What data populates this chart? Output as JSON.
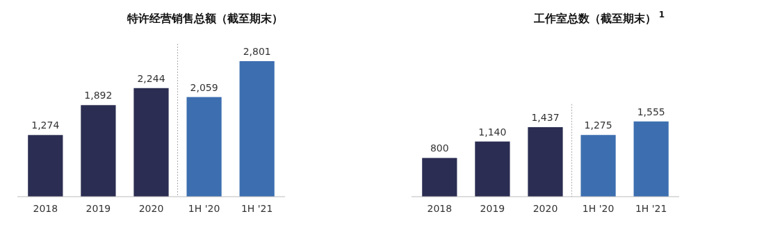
{
  "chart_data": [
    {
      "type": "bar",
      "title": "特许经营销售总额（截至期末）",
      "categories": [
        "2018",
        "2019",
        "2020",
        "1H '20",
        "1H '21"
      ],
      "values": [
        1274,
        1892,
        2244,
        2059,
        2801
      ],
      "value_labels": [
        "1,274",
        "1,892",
        "2,244",
        "2,059",
        "2,801"
      ],
      "colors": [
        "#2b2d52",
        "#2b2d52",
        "#2b2d52",
        "#3d6fb0",
        "#3d6fb0"
      ]
    },
    {
      "type": "bar",
      "title": "工作室总数（截至期末）$^{1}$",
      "categories": [
        "2018",
        "2019",
        "2020",
        "1H '20",
        "1H '21"
      ],
      "values": [
        800,
        1140,
        1437,
        1275,
        1555
      ],
      "value_labels": [
        "800",
        "1,140",
        "1,437",
        "1,275",
        "1,555"
      ],
      "colors": [
        "#2b2d52",
        "#2b2d52",
        "#2b2d52",
        "#3d6fb0",
        "#3d6fb0"
      ]
    }
  ]
}
